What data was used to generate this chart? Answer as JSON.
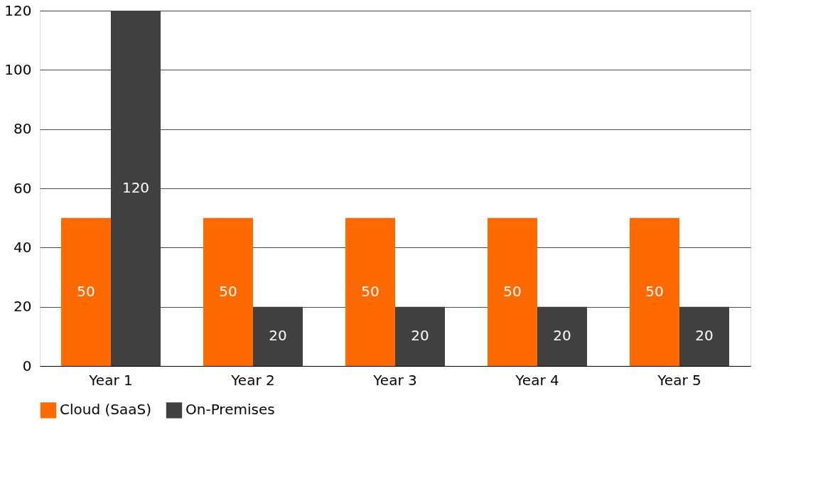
{
  "chart_data": {
    "type": "bar",
    "categories": [
      "Year 1",
      "Year 2",
      "Year 3",
      "Year 4",
      "Year 5"
    ],
    "series": [
      {
        "name": "Cloud (SaaS)",
        "color": "#ff6a00",
        "values": [
          50,
          50,
          50,
          50,
          50
        ]
      },
      {
        "name": "On-Premises",
        "color": "#404040",
        "values": [
          120,
          20,
          20,
          20,
          20
        ]
      }
    ],
    "ylim": [
      0,
      120
    ],
    "yticks": [
      0,
      20,
      40,
      60,
      80,
      100,
      120
    ],
    "grid": "y",
    "legend": "bottom left",
    "data_labels": true
  }
}
